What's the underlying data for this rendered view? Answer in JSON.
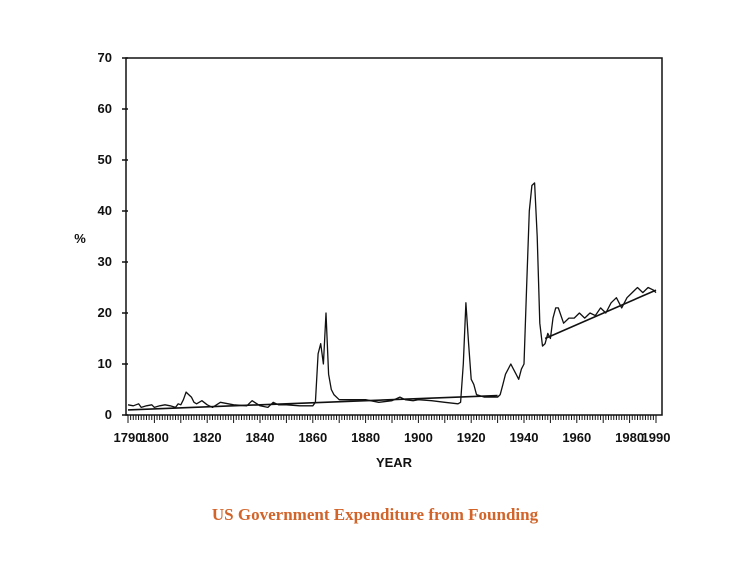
{
  "caption": "US Government Expenditure from Founding",
  "colors": {
    "caption": "#d2642a",
    "ink": "#111111"
  },
  "chart_data": {
    "type": "line",
    "title": "",
    "xlabel": "YEAR",
    "ylabel": "%",
    "xlim": [
      1790,
      1990
    ],
    "ylim": [
      0,
      70
    ],
    "xticks": [
      1790,
      1800,
      1820,
      1840,
      1860,
      1880,
      1900,
      1920,
      1940,
      1960,
      1980,
      1990
    ],
    "yticks": [
      0,
      10,
      20,
      30,
      40,
      50,
      60,
      70
    ],
    "grid": false,
    "legend": "none",
    "series": [
      {
        "x": [
          1790,
          1792,
          1794,
          1795,
          1797,
          1799,
          1800,
          1802,
          1804,
          1806,
          1808,
          1809,
          1810,
          1811,
          1812,
          1813,
          1814,
          1815,
          1816,
          1818,
          1820,
          1822,
          1825,
          1830,
          1835,
          1837,
          1840,
          1843,
          1845,
          1847,
          1850,
          1855,
          1860,
          1861,
          1862,
          1863,
          1864,
          1865,
          1866,
          1867,
          1868,
          1870,
          1875,
          1880,
          1885,
          1890,
          1893,
          1895,
          1898,
          1900,
          1905,
          1910,
          1915,
          1916,
          1917,
          1918,
          1919,
          1920,
          1921,
          1922,
          1925,
          1930,
          1931,
          1932,
          1933,
          1934,
          1935,
          1936,
          1937,
          1938,
          1939,
          1940,
          1941,
          1942,
          1943,
          1944,
          1945,
          1946,
          1947,
          1948,
          1949,
          1950,
          1951,
          1952,
          1953,
          1955,
          1957,
          1959,
          1961,
          1963,
          1965,
          1967,
          1969,
          1971,
          1973,
          1975,
          1977,
          1979,
          1981,
          1983,
          1985,
          1987,
          1989,
          1990
        ],
        "y": [
          2,
          1.8,
          2.2,
          1.5,
          1.8,
          2.0,
          1.5,
          1.8,
          2.0,
          1.8,
          1.5,
          2.2,
          2.0,
          3.0,
          4.5,
          4.0,
          3.5,
          2.5,
          2.2,
          2.8,
          2.0,
          1.5,
          2.5,
          2.0,
          1.8,
          2.8,
          1.8,
          1.5,
          2.5,
          2.0,
          2.0,
          1.8,
          1.8,
          2.5,
          12,
          14,
          10,
          20,
          8,
          5,
          4,
          3,
          3,
          3,
          2.5,
          2.8,
          3.5,
          3.0,
          2.8,
          3.0,
          2.8,
          2.5,
          2.2,
          2.5,
          10,
          22,
          14,
          7,
          6,
          4,
          3.5,
          3.5,
          4,
          6,
          8,
          9,
          10,
          9,
          8,
          7,
          9,
          10,
          25,
          40,
          45,
          45.5,
          35,
          18,
          13.5,
          14,
          16,
          15,
          19,
          21,
          21,
          18,
          19,
          19,
          20,
          19,
          20,
          19.5,
          21,
          20,
          22,
          23,
          21,
          23,
          24,
          25,
          24,
          25,
          24.5,
          24
        ]
      },
      {
        "name": "",
        "x": [
          1790,
          1930
        ],
        "y": [
          1.0,
          3.8
        ]
      },
      {
        "name": "",
        "x": [
          1948,
          1990
        ],
        "y": [
          15.0,
          24.5
        ]
      }
    ]
  }
}
